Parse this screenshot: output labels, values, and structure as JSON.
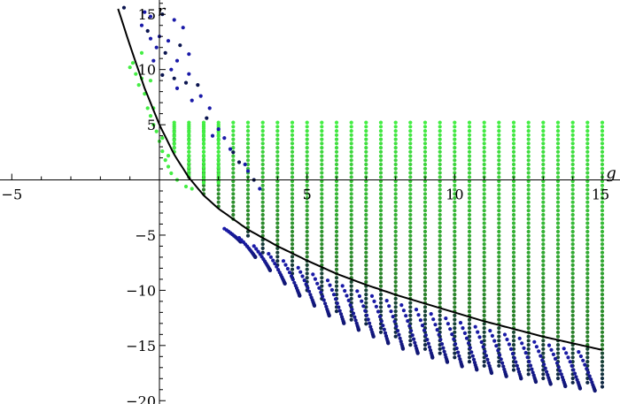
{
  "chart_data": {
    "type": "scatter",
    "title": "",
    "xlabel": "g",
    "ylabel": "r",
    "xlim": [
      -5.4,
      15.6
    ],
    "ylim": [
      -20.3,
      16.3
    ],
    "x_ticks": [
      -5,
      5,
      10,
      15
    ],
    "x_minor_step": 1,
    "y_ticks": [
      15,
      10,
      5,
      -5,
      -10,
      -15,
      -20
    ],
    "y_minor_step": 1,
    "grid": false,
    "legend": "none",
    "colors": {
      "light_green": "#44ee44",
      "dark_green": "#226622",
      "blue": "#1a1aa8",
      "dark_navy": "#0b1550",
      "curve": "#000000"
    },
    "series": [
      {
        "kind": "scatter-grid",
        "g_values": [
          0.5,
          1.0,
          1.5,
          2.0,
          2.5,
          3.0,
          3.5,
          4.0,
          4.5,
          5.0,
          5.5,
          6.0,
          6.5,
          7.0,
          7.5,
          8.0,
          8.5,
          9.0,
          9.5,
          10.0,
          10.5,
          11.0,
          11.5,
          12.0,
          12.5,
          13.0,
          13.5,
          14.0,
          14.5,
          15.0
        ],
        "r_top": 5.2,
        "r_step": 0.38,
        "note_bottom": "each column runs from r_top down to the curve near small g, and below it to a minimum that decreases with g"
      },
      {
        "kind": "blue-hooks",
        "g_values": [
          2.8,
          3.3,
          3.8,
          4.3,
          4.8,
          5.3,
          5.8,
          6.3,
          6.8,
          7.3,
          7.8,
          8.3,
          8.8,
          9.3,
          9.8,
          10.3,
          10.8,
          11.3,
          11.8,
          12.3,
          12.8,
          13.3,
          13.8,
          14.3,
          14.8
        ],
        "r_min": [
          -5.6,
          -7.0,
          -8.2,
          -9.4,
          -10.5,
          -11.4,
          -12.3,
          -13.0,
          -13.6,
          -14.2,
          -14.8,
          -15.3,
          -15.7,
          -16.1,
          -16.5,
          -16.9,
          -17.2,
          -17.5,
          -17.8,
          -18.0,
          -18.3,
          -18.5,
          -18.7,
          -18.9,
          -19.1
        ]
      },
      {
        "kind": "curve",
        "g_range": [
          -1.4,
          15.0
        ],
        "points": [
          [
            -1.4,
            15.5
          ],
          [
            -1.0,
            12.2
          ],
          [
            -0.5,
            8.3
          ],
          [
            0.0,
            5.0
          ],
          [
            0.5,
            2.3
          ],
          [
            1.0,
            0.2
          ],
          [
            1.5,
            -1.4
          ],
          [
            2.0,
            -2.6
          ],
          [
            3.0,
            -4.5
          ],
          [
            4.0,
            -6.0
          ],
          [
            5.0,
            -7.3
          ],
          [
            6.0,
            -8.5
          ],
          [
            7.0,
            -9.5
          ],
          [
            8.0,
            -10.4
          ],
          [
            9.0,
            -11.2
          ],
          [
            10.0,
            -12.0
          ],
          [
            11.0,
            -12.8
          ],
          [
            12.0,
            -13.5
          ],
          [
            13.0,
            -14.2
          ],
          [
            14.0,
            -14.8
          ],
          [
            15.0,
            -15.4
          ]
        ]
      }
    ]
  }
}
